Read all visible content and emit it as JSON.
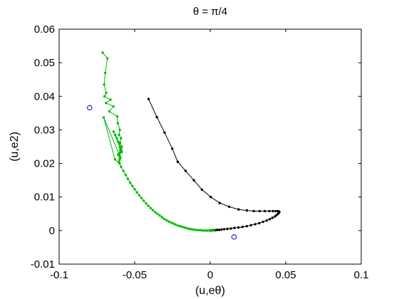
{
  "chart_data": {
    "type": "scatter",
    "title": "θ = π/4",
    "xlabel": "(u,eθ)",
    "ylabel": "(u,e2)",
    "xlim": [
      -0.1,
      0.1
    ],
    "ylim": [
      -0.01,
      0.06
    ],
    "xticks": [
      "-0.1",
      "-0.05",
      "0",
      "0.05",
      "0.1"
    ],
    "yticks": [
      "-0.01",
      "0",
      "0.01",
      "0.02",
      "0.03",
      "0.04",
      "0.05",
      "0.06"
    ],
    "grid": false,
    "series": [
      {
        "color": "#000000",
        "marker": "dot",
        "line": true,
        "x": [
          -0.0408,
          -0.0353,
          -0.0302,
          -0.0251,
          -0.0215,
          -0.0163,
          -0.0108,
          -0.0055,
          0.0004,
          0.0063,
          0.0126,
          0.0188,
          0.0243,
          0.0288,
          0.0327,
          0.0362,
          0.0392,
          0.0415,
          0.0433,
          0.0447,
          0.0455,
          0.0458,
          0.0455,
          0.0449,
          0.044,
          0.0428,
          0.0412,
          0.0394,
          0.0374,
          0.035,
          0.0325,
          0.0298,
          0.027,
          0.0242,
          0.0214,
          0.0187,
          0.0161,
          0.0137,
          0.0114,
          0.0093,
          0.0075,
          0.0059,
          0.0045,
          0.0033,
          0.0023,
          0.0015,
          0.0009,
          0.0004,
          0.0001
        ],
        "y": [
          0.0392,
          0.0338,
          0.0292,
          0.0244,
          0.0205,
          0.0178,
          0.015,
          0.0122,
          0.01,
          0.0082,
          0.0071,
          0.0063,
          0.006,
          0.0058,
          0.0058,
          0.0058,
          0.0058,
          0.0058,
          0.0058,
          0.0058,
          0.0057,
          0.0056,
          0.0053,
          0.005,
          0.0046,
          0.0042,
          0.0038,
          0.0034,
          0.003,
          0.0026,
          0.0022,
          0.0019,
          0.0016,
          0.0013,
          0.0011,
          0.0009,
          0.0008,
          0.0006,
          0.0005,
          0.0004,
          0.0003,
          0.0002,
          0.0002,
          0.0001,
          0.0001,
          0.0001,
          0.0,
          0.0,
          0.0
        ]
      },
      {
        "color": "#00bb00",
        "marker": "dot",
        "line": true,
        "x": [
          -0.0712,
          -0.068,
          -0.0695,
          -0.0702,
          -0.0688,
          -0.07,
          -0.066,
          -0.069,
          -0.064,
          -0.0668,
          -0.0615,
          -0.0612,
          -0.0598,
          -0.0603,
          -0.059,
          -0.0597,
          -0.0585,
          -0.0594,
          -0.0588,
          -0.064,
          -0.0628,
          -0.0618,
          -0.061,
          -0.0603,
          -0.0598,
          -0.0592,
          -0.0588,
          -0.0585,
          -0.0605,
          -0.06,
          -0.0595,
          -0.06,
          -0.0605,
          -0.0598,
          -0.059,
          -0.0595,
          -0.061,
          -0.0595,
          -0.0705,
          -0.063,
          -0.06,
          -0.059,
          -0.0575,
          -0.056,
          -0.0545,
          -0.053,
          -0.0515,
          -0.05,
          -0.0485,
          -0.047,
          -0.0455,
          -0.044,
          -0.0425,
          -0.041,
          -0.0395,
          -0.038,
          -0.0365,
          -0.035,
          -0.0335,
          -0.032,
          -0.0305,
          -0.029,
          -0.0275,
          -0.026,
          -0.0245,
          -0.023,
          -0.0215,
          -0.02,
          -0.0185,
          -0.017,
          -0.0155,
          -0.014,
          -0.0125,
          -0.011,
          -0.0095,
          -0.008,
          -0.0065,
          -0.005,
          -0.0035,
          -0.002,
          -0.0005,
          0.001,
          0.0025
        ],
        "y": [
          0.053,
          0.0513,
          0.047,
          0.0435,
          0.041,
          0.04,
          0.039,
          0.038,
          0.037,
          0.0355,
          0.034,
          0.032,
          0.03,
          0.0285,
          0.0275,
          0.0262,
          0.025,
          0.0245,
          0.0238,
          0.0295,
          0.0285,
          0.0275,
          0.0265,
          0.0258,
          0.025,
          0.0244,
          0.024,
          0.0234,
          0.0228,
          0.0222,
          0.0216,
          0.021,
          0.0204,
          0.023,
          0.0236,
          0.024,
          0.0226,
          0.0218,
          0.0337,
          0.0212,
          0.02,
          0.019,
          0.0178,
          0.0166,
          0.0154,
          0.0143,
          0.0133,
          0.0123,
          0.0114,
          0.0105,
          0.0097,
          0.0089,
          0.0081,
          0.0074,
          0.0067,
          0.0061,
          0.0055,
          0.005,
          0.0045,
          0.004,
          0.0035,
          0.0031,
          0.0027,
          0.0024,
          0.0021,
          0.0018,
          0.0015,
          0.0013,
          0.0011,
          0.0009,
          0.0007,
          0.0005,
          0.0004,
          0.0003,
          0.0002,
          0.0001,
          0.0001,
          0.0,
          0.0,
          0.0,
          0.0,
          0.0,
          0.0
        ]
      },
      {
        "color": "#0000cc",
        "marker": "open-circle",
        "line": false,
        "x": [
          -0.0798,
          0.0158
        ],
        "y": [
          0.0366,
          -0.0019
        ]
      }
    ]
  }
}
